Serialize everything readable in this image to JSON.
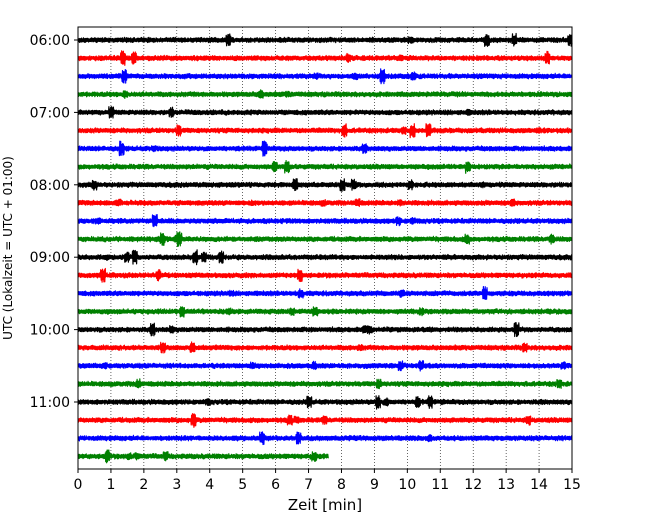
{
  "chart_data": {
    "type": "line",
    "title": "",
    "xlabel": "Zeit  [min]",
    "ylabel": "UTC (Lokalzeit = UTC + 01:00)",
    "xlim": [
      0,
      15
    ],
    "x_ticks": [
      0,
      1,
      2,
      3,
      4,
      5,
      6,
      7,
      8,
      9,
      10,
      11,
      12,
      13,
      14,
      15
    ],
    "y_tick_labels": [
      "06:00",
      "07:00",
      "08:00",
      "09:00",
      "10:00",
      "11:00"
    ],
    "grid": "vertical dotted",
    "legend": "none",
    "trace_interval_minutes": 15,
    "trace_start": "06:00",
    "color_cycle": [
      "#000000",
      "#ff0000",
      "#0000ff",
      "#008000"
    ],
    "series": [
      {
        "start": "06:00",
        "color": "#000000",
        "duration_min": 15
      },
      {
        "start": "06:15",
        "color": "#ff0000",
        "duration_min": 15
      },
      {
        "start": "06:30",
        "color": "#0000ff",
        "duration_min": 15
      },
      {
        "start": "06:45",
        "color": "#008000",
        "duration_min": 15
      },
      {
        "start": "07:00",
        "color": "#000000",
        "duration_min": 15
      },
      {
        "start": "07:15",
        "color": "#ff0000",
        "duration_min": 15
      },
      {
        "start": "07:30",
        "color": "#0000ff",
        "duration_min": 15
      },
      {
        "start": "07:45",
        "color": "#008000",
        "duration_min": 15
      },
      {
        "start": "08:00",
        "color": "#000000",
        "duration_min": 15
      },
      {
        "start": "08:15",
        "color": "#ff0000",
        "duration_min": 15
      },
      {
        "start": "08:30",
        "color": "#0000ff",
        "duration_min": 15
      },
      {
        "start": "08:45",
        "color": "#008000",
        "duration_min": 15
      },
      {
        "start": "09:00",
        "color": "#000000",
        "duration_min": 15
      },
      {
        "start": "09:15",
        "color": "#ff0000",
        "duration_min": 15
      },
      {
        "start": "09:30",
        "color": "#0000ff",
        "duration_min": 15
      },
      {
        "start": "09:45",
        "color": "#008000",
        "duration_min": 15
      },
      {
        "start": "10:00",
        "color": "#000000",
        "duration_min": 15
      },
      {
        "start": "10:15",
        "color": "#ff0000",
        "duration_min": 15
      },
      {
        "start": "10:30",
        "color": "#0000ff",
        "duration_min": 15
      },
      {
        "start": "10:45",
        "color": "#008000",
        "duration_min": 15
      },
      {
        "start": "11:00",
        "color": "#000000",
        "duration_min": 15
      },
      {
        "start": "11:15",
        "color": "#ff0000",
        "duration_min": 15
      },
      {
        "start": "11:30",
        "color": "#0000ff",
        "duration_min": 15
      },
      {
        "start": "11:45",
        "color": "#008000",
        "duration_min": 7.6
      }
    ]
  }
}
